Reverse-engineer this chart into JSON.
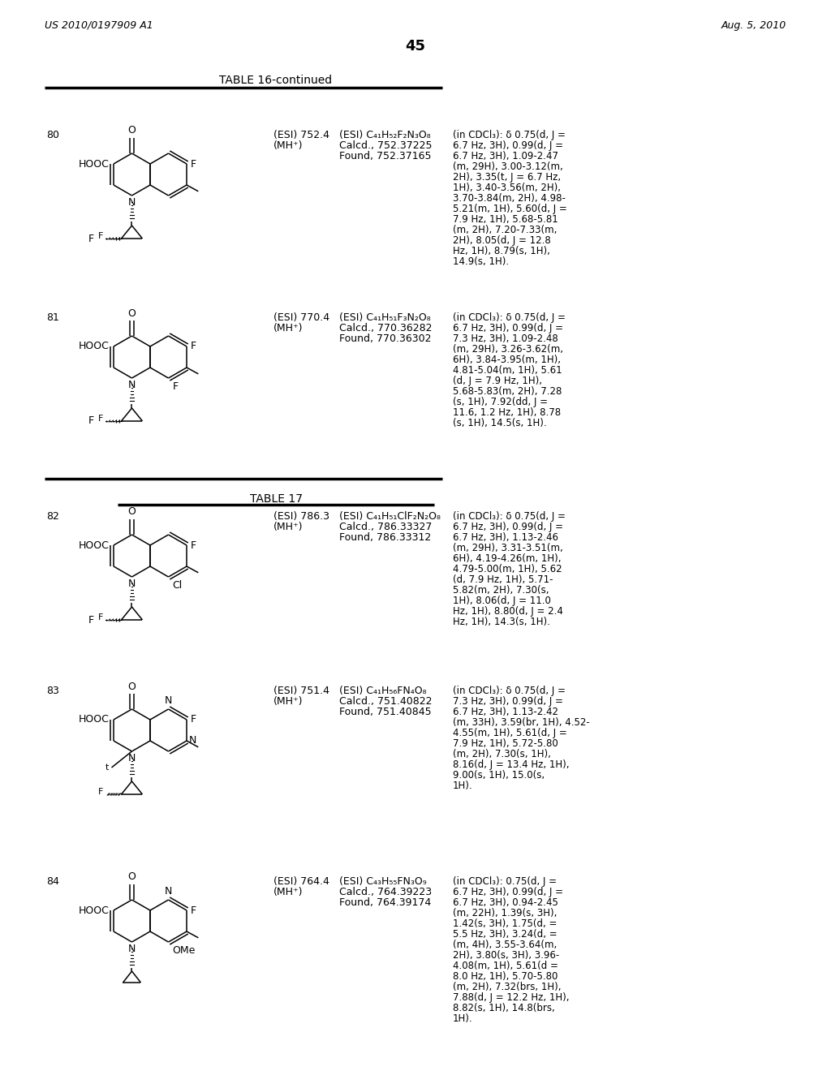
{
  "bg_color": "#ffffff",
  "page_header_left": "US 2010/0197909 A1",
  "page_header_right": "Aug. 5, 2010",
  "page_number": "45",
  "table16_title": "TABLE 16-continued",
  "table17_title": "TABLE 17",
  "compounds": [
    {
      "num": "80",
      "table": 16,
      "esi_line1": "(ESI) 752.4",
      "esi_line2": "(MH⁺)",
      "formula_line1": "(ESI) C₄₁H₅₂F₂N₃O₈",
      "formula_line2": "Calcd., 752.37225",
      "formula_line3": "Found, 752.37165",
      "nmr_lines": [
        "(in CDCl₃): δ 0.75(d, J =",
        "6.7 Hz, 3H), 0.99(d, J =",
        "6.7 Hz, 3H), 1.09-2.47",
        "(m, 29H), 3.00-3.12(m,",
        "2H), 3.35(t, J = 6.7 Hz,",
        "1H), 3.40-3.56(m, 2H),",
        "3.70-3.84(m, 2H), 4.98-",
        "5.21(m, 1H), 5.60(d, J =",
        "7.9 Hz, 1H), 5.68-5.81",
        "(m, 2H), 7.20-7.33(m,",
        "2H), 8.05(d, J = 12.8",
        "Hz, 1H), 8.79(s, 1H),",
        "14.9(s, 1H)."
      ],
      "right_ring_type": "benzene",
      "right_sub_top": "F",
      "right_sub_bottom": "",
      "bottom_N_sub": "cyclopropyl_F",
      "methyl_on_ring": true
    },
    {
      "num": "81",
      "table": 16,
      "esi_line1": "(ESI) 770.4",
      "esi_line2": "(MH⁺)",
      "formula_line1": "(ESI) C₄₁H₅₁F₃N₂O₈",
      "formula_line2": "Calcd., 770.36282",
      "formula_line3": "Found, 770.36302",
      "nmr_lines": [
        "(in CDCl₃): δ 0.75(d, J =",
        "6.7 Hz, 3H), 0.99(d, J =",
        "7.3 Hz, 3H), 1.09-2.48",
        "(m, 29H), 3.26-3.62(m,",
        "6H), 3.84-3.95(m, 1H),",
        "4.81-5.04(m, 1H), 5.61",
        "(d, J = 7.9 Hz, 1H),",
        "5.68-5.83(m, 2H), 7.28",
        "(s, 1H), 7.92(dd, J =",
        "11.6, 1.2 Hz, 1H), 8.78",
        "(s, 1H), 14.5(s, 1H)."
      ],
      "right_ring_type": "benzene",
      "right_sub_top": "F",
      "right_sub_bottom": "F",
      "bottom_N_sub": "cyclopropyl_F",
      "methyl_on_ring": true
    },
    {
      "num": "82",
      "table": 17,
      "esi_line1": "(ESI) 786.3",
      "esi_line2": "(MH⁺)",
      "formula_line1": "(ESI) C₄₁H₅₁ClF₂N₂O₈",
      "formula_line2": "Calcd., 786.33327",
      "formula_line3": "Found, 786.33312",
      "nmr_lines": [
        "(in CDCl₃): δ 0.75(d, J =",
        "6.7 Hz, 3H), 0.99(d, J =",
        "6.7 Hz, 3H), 1.13-2.46",
        "(m, 29H), 3.31-3.51(m,",
        "6H), 4.19-4.26(m, 1H),",
        "4.79-5.00(m, 1H), 5.62",
        "(d, 7.9 Hz, 1H), 5.71-",
        "5.82(m, 2H), 7.30(s,",
        "1H), 8.06(d, J = 11.0",
        "Hz, 1H), 8.80(d, J = 2.4",
        "Hz, 1H), 14.3(s, 1H)."
      ],
      "right_ring_type": "benzene",
      "right_sub_top": "F",
      "right_sub_bottom": "Cl",
      "bottom_N_sub": "cyclopropyl_F",
      "methyl_on_ring": true
    },
    {
      "num": "83",
      "table": 17,
      "esi_line1": "(ESI) 751.4",
      "esi_line2": "(MH⁺)",
      "formula_line1": "(ESI) C₄₁H₅₆FN₄O₈",
      "formula_line2": "Calcd., 751.40822",
      "formula_line3": "Found, 751.40845",
      "nmr_lines": [
        "(in CDCl₃): δ 0.75(d, J =",
        "7.3 Hz, 3H), 0.99(d, J =",
        "6.7 Hz, 3H), 1.13-2.42",
        "(m, 33H), 3.59(br, 1H), 4.52-",
        "4.55(m, 1H), 5.61(d, J =",
        "7.9 Hz, 1H), 5.72-5.80",
        "(m, 2H), 7.30(s, 1H),",
        "8.16(d, J = 13.4 Hz, 1H),",
        "9.00(s, 1H), 15.0(s,",
        "1H)."
      ],
      "right_ring_type": "pyrimidine",
      "right_sub_top": "F",
      "right_sub_bottom": "",
      "bottom_N_sub": "tBu_cyclopropyl",
      "methyl_on_ring": true
    },
    {
      "num": "84",
      "table": 17,
      "esi_line1": "(ESI) 764.4",
      "esi_line2": "(MH⁺)",
      "formula_line1": "(ESI) C₄₃H₅₅FN₃O₉",
      "formula_line2": "Calcd., 764.39223",
      "formula_line3": "Found, 764.39174",
      "nmr_lines": [
        "(in CDCl₃): 0.75(d, J =",
        "6.7 Hz, 3H), 0.99(d, J =",
        "6.7 Hz, 3H), 0.94-2.45",
        "(m, 22H), 1.39(s, 3H),",
        "1.42(s, 3H), 1.75(d, =",
        "5.5 Hz, 3H), 3.24(d, =",
        "(m, 4H), 3.55-3.64(m,",
        "2H), 3.80(s, 3H), 3.96-",
        "4.08(m, 1H), 5.61(d =",
        "8.0 Hz, 1H), 5.70-5.80",
        "(m, 2H), 7.32(brs, 1H),",
        "7.88(d, J = 12.2 Hz, 1H),",
        "8.82(s, 1H), 14.8(brs,",
        "1H)."
      ],
      "right_ring_type": "pyridine_OMe",
      "right_sub_top": "F",
      "right_sub_bottom": "OMe",
      "bottom_N_sub": "cyclopropyl_plain",
      "methyl_on_ring": true
    }
  ]
}
